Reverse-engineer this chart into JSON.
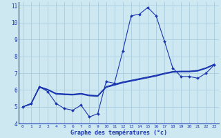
{
  "xlabel": "Graphe des températures (°c)",
  "background_color": "#cde8f0",
  "grid_color": "#aaccdd",
  "line_color": "#1a35b0",
  "xlim": [
    -0.5,
    23.5
  ],
  "ylim": [
    4,
    11.2
  ],
  "xticks": [
    0,
    1,
    2,
    3,
    4,
    5,
    6,
    7,
    8,
    9,
    10,
    11,
    12,
    13,
    14,
    15,
    16,
    17,
    18,
    19,
    20,
    21,
    22,
    23
  ],
  "yticks": [
    4,
    5,
    6,
    7,
    8,
    9,
    10,
    11
  ],
  "line1_x": [
    0,
    1,
    2,
    3,
    4,
    5,
    6,
    7,
    8,
    9,
    10,
    11,
    12,
    13,
    14,
    15,
    16,
    17,
    18,
    19,
    20,
    21,
    22,
    23
  ],
  "line1_y": [
    5.0,
    5.2,
    6.2,
    5.9,
    5.2,
    4.9,
    4.8,
    5.1,
    4.4,
    4.6,
    6.5,
    6.4,
    8.3,
    10.4,
    10.5,
    10.9,
    10.4,
    8.9,
    7.3,
    6.8,
    6.8,
    6.7,
    7.0,
    7.5
  ],
  "line2_x": [
    0,
    1,
    2,
    3,
    4,
    5,
    6,
    7,
    8,
    9,
    10,
    11,
    12,
    13,
    14,
    15,
    16,
    17,
    18,
    19,
    20,
    21,
    22,
    23
  ],
  "line2_y": [
    5.0,
    5.15,
    6.15,
    6.0,
    5.75,
    5.72,
    5.7,
    5.75,
    5.65,
    5.62,
    6.15,
    6.28,
    6.42,
    6.52,
    6.62,
    6.72,
    6.82,
    6.95,
    7.05,
    7.08,
    7.08,
    7.12,
    7.28,
    7.5
  ],
  "line3_x": [
    0,
    1,
    2,
    3,
    4,
    5,
    6,
    7,
    8,
    9,
    10,
    11,
    12,
    13,
    14,
    15,
    16,
    17,
    18,
    19,
    20,
    21,
    22,
    23
  ],
  "line3_y": [
    5.0,
    5.18,
    6.18,
    6.02,
    5.78,
    5.75,
    5.73,
    5.78,
    5.68,
    5.65,
    6.18,
    6.32,
    6.45,
    6.55,
    6.65,
    6.75,
    6.85,
    6.98,
    7.08,
    7.1,
    7.1,
    7.15,
    7.3,
    7.52
  ],
  "line4_x": [
    0,
    1,
    2,
    3,
    4,
    5,
    6,
    7,
    8,
    9,
    10,
    11,
    12,
    13,
    14,
    15,
    16,
    17,
    18,
    19,
    20,
    21,
    22,
    23
  ],
  "line4_y": [
    5.0,
    5.2,
    6.2,
    6.04,
    5.8,
    5.77,
    5.75,
    5.8,
    5.7,
    5.67,
    6.2,
    6.35,
    6.48,
    6.58,
    6.68,
    6.78,
    6.88,
    7.0,
    7.1,
    7.12,
    7.12,
    7.17,
    7.32,
    7.54
  ]
}
